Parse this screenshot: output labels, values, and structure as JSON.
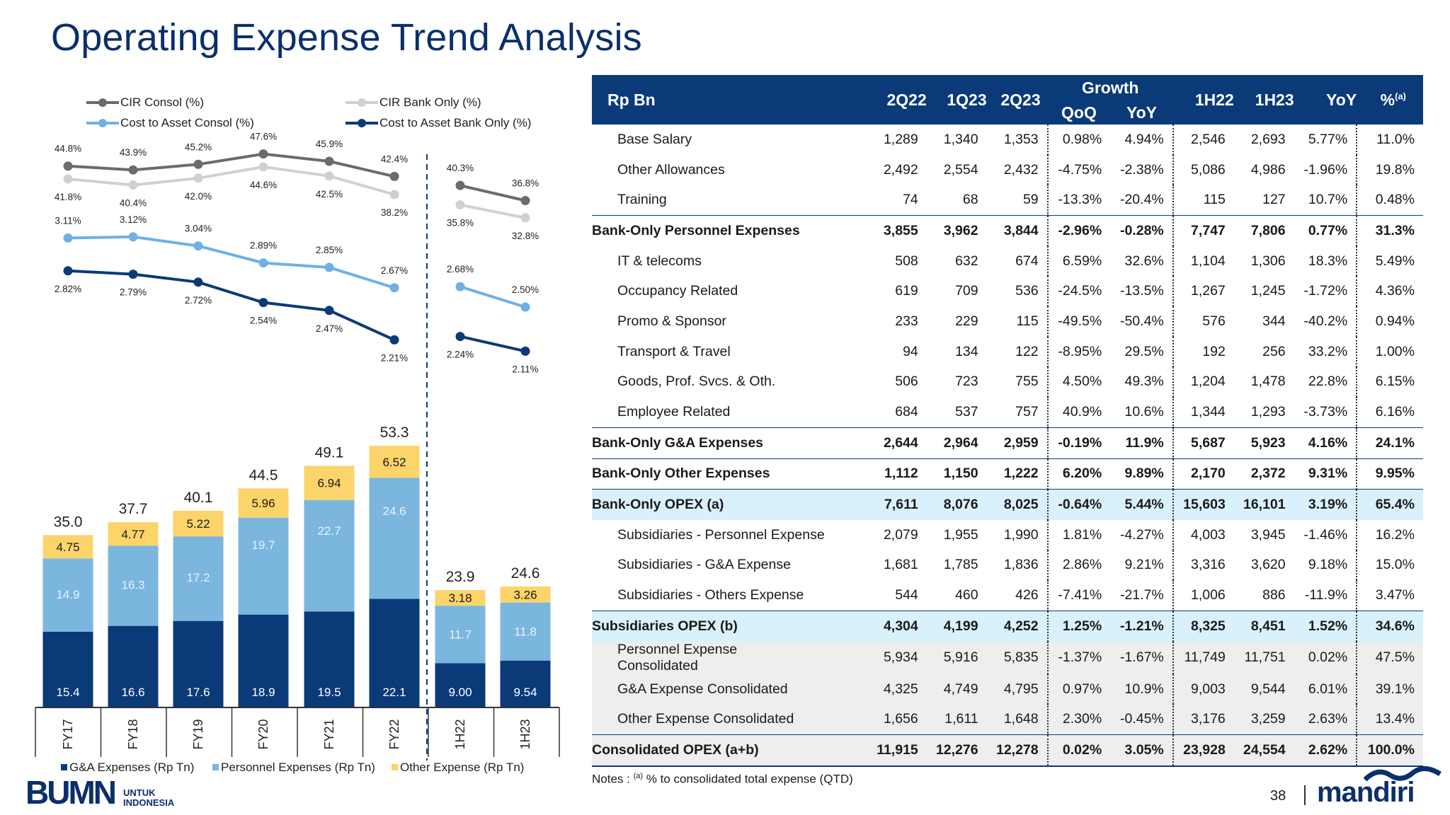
{
  "title": "Operating Expense  Trend Analysis",
  "colors": {
    "navy": "#0b3a78",
    "lightblue": "#7bb6df",
    "yellow": "#fcd46a",
    "grey_dark": "#6b6b6b",
    "grey_light": "#d0d0d0",
    "line_blue": "#6fb1e4",
    "highlight": "#d9f1fb"
  },
  "chart_data": [
    {
      "type": "line",
      "categories": [
        "FY17",
        "FY18",
        "FY19",
        "FY20",
        "FY21",
        "FY22",
        "1H22",
        "1H23"
      ],
      "series": [
        {
          "name": "CIR Consol (%)",
          "values": [
            44.8,
            43.9,
            45.2,
            47.6,
            45.9,
            42.4,
            40.3,
            36.8
          ],
          "labels": [
            "44.8%",
            "43.9%",
            "45.2%",
            "47.6%",
            "45.9%",
            "42.4%",
            "40.3%",
            "36.8%"
          ]
        },
        {
          "name": "CIR Bank Only (%)",
          "values": [
            41.8,
            40.4,
            42.0,
            44.6,
            42.5,
            38.2,
            35.8,
            32.8
          ],
          "labels": [
            "41.8%",
            "40.4%",
            "42.0%",
            "44.6%",
            "42.5%",
            "38.2%",
            "35.8%",
            "32.8%"
          ]
        },
        {
          "name": "Cost to Asset Consol (%)",
          "values": [
            3.11,
            3.12,
            3.04,
            2.89,
            2.85,
            2.67,
            2.68,
            2.5
          ],
          "labels": [
            "3.11%",
            "3.12%",
            "3.04%",
            "2.89%",
            "2.85%",
            "2.67%",
            "2.68%",
            "2.50%"
          ]
        },
        {
          "name": "Cost to Asset Bank Only (%)",
          "values": [
            2.82,
            2.79,
            2.72,
            2.54,
            2.47,
            2.21,
            2.24,
            2.11
          ],
          "labels": [
            "2.82%",
            "2.79%",
            "2.72%",
            "2.54%",
            "2.47%",
            "2.21%",
            "2.24%",
            "2.11%"
          ]
        }
      ]
    },
    {
      "type": "bar",
      "stacked": true,
      "categories": [
        "FY17",
        "FY18",
        "FY19",
        "FY20",
        "FY21",
        "FY22",
        "1H22",
        "1H23"
      ],
      "totals": [
        "35.0",
        "37.7",
        "40.1",
        "44.5",
        "49.1",
        "53.3",
        "23.9",
        "24.6"
      ],
      "series": [
        {
          "name": "G&A Expenses (Rp Tn)",
          "values": [
            15.4,
            16.6,
            17.6,
            18.9,
            19.5,
            22.1,
            9.0,
            9.54
          ],
          "labels": [
            "15.4",
            "16.6",
            "17.6",
            "18.9",
            "19.5",
            "22.1",
            "9.00",
            "9.54"
          ]
        },
        {
          "name": "Personnel Expenses (Rp Tn)",
          "values": [
            14.9,
            16.3,
            17.2,
            19.7,
            22.7,
            24.6,
            11.7,
            11.8
          ],
          "labels": [
            "14.9",
            "16.3",
            "17.2",
            "19.7",
            "22.7",
            "24.6",
            "11.7",
            "11.8"
          ]
        },
        {
          "name": "Other Expense (Rp Tn)",
          "values": [
            4.75,
            4.77,
            5.22,
            5.96,
            6.94,
            6.52,
            3.18,
            3.26
          ],
          "labels": [
            "4.75",
            "4.77",
            "5.22",
            "5.96",
            "6.94",
            "6.52",
            "3.18",
            "3.26"
          ]
        }
      ]
    }
  ],
  "table": {
    "header": {
      "label": "Rp Bn",
      "growth": "Growth",
      "cols": [
        "2Q22",
        "1Q23",
        "2Q23"
      ],
      "qoq": "QoQ",
      "yoy": "YoY",
      "cols2": [
        "1H22",
        "1H23"
      ],
      "yoy2": "YoY",
      "pct": "%",
      "pct_sup": "(a)"
    },
    "rows": [
      {
        "label": "Base Salary",
        "v": [
          "1,289",
          "1,340",
          "1,353",
          "0.98%",
          "4.94%",
          "2,546",
          "2,693",
          "5.77%",
          "11.0%"
        ]
      },
      {
        "label": "Other Allowances",
        "v": [
          "2,492",
          "2,554",
          "2,432",
          "-4.75%",
          "-2.38%",
          "5,086",
          "4,986",
          "-1.96%",
          "19.8%"
        ]
      },
      {
        "label": "Training",
        "v": [
          "74",
          "68",
          "59",
          "-13.3%",
          "-20.4%",
          "115",
          "127",
          "10.7%",
          "0.48%"
        ]
      },
      {
        "label": "Bank-Only Personnel Expenses",
        "v": [
          "3,855",
          "3,962",
          "3,844",
          "-2.96%",
          "-0.28%",
          "7,747",
          "7,806",
          "0.77%",
          "31.3%"
        ]
      },
      {
        "label": "IT & telecoms",
        "v": [
          "508",
          "632",
          "674",
          "6.59%",
          "32.6%",
          "1,104",
          "1,306",
          "18.3%",
          "5.49%"
        ]
      },
      {
        "label": "Occupancy Related",
        "v": [
          "619",
          "709",
          "536",
          "-24.5%",
          "-13.5%",
          "1,267",
          "1,245",
          "-1.72%",
          "4.36%"
        ]
      },
      {
        "label": "Promo & Sponsor",
        "v": [
          "233",
          "229",
          "115",
          "-49.5%",
          "-50.4%",
          "576",
          "344",
          "-40.2%",
          "0.94%"
        ]
      },
      {
        "label": "Transport & Travel",
        "v": [
          "94",
          "134",
          "122",
          "-8.95%",
          "29.5%",
          "192",
          "256",
          "33.2%",
          "1.00%"
        ]
      },
      {
        "label": "Goods, Prof. Svcs. & Oth.",
        "v": [
          "506",
          "723",
          "755",
          "4.50%",
          "49.3%",
          "1,204",
          "1,478",
          "22.8%",
          "6.15%"
        ]
      },
      {
        "label": "Employee Related",
        "v": [
          "684",
          "537",
          "757",
          "40.9%",
          "10.6%",
          "1,344",
          "1,293",
          "-3.73%",
          "6.16%"
        ]
      },
      {
        "label": "Bank-Only G&A Expenses",
        "v": [
          "2,644",
          "2,964",
          "2,959",
          "-0.19%",
          "11.9%",
          "5,687",
          "5,923",
          "4.16%",
          "24.1%"
        ]
      },
      {
        "label": "Bank-Only Other Expenses",
        "v": [
          "1,112",
          "1,150",
          "1,222",
          "6.20%",
          "9.89%",
          "2,170",
          "2,372",
          "9.31%",
          "9.95%"
        ]
      },
      {
        "label": "Bank-Only OPEX (a)",
        "v": [
          "7,611",
          "8,076",
          "8,025",
          "-0.64%",
          "5.44%",
          "15,603",
          "16,101",
          "3.19%",
          "65.4%"
        ]
      },
      {
        "label": "Subsidiaries - Personnel Expense",
        "v": [
          "2,079",
          "1,955",
          "1,990",
          "1.81%",
          "-4.27%",
          "4,003",
          "3,945",
          "-1.46%",
          "16.2%"
        ]
      },
      {
        "label": "Subsidiaries - G&A Expense",
        "v": [
          "1,681",
          "1,785",
          "1,836",
          "2.86%",
          "9.21%",
          "3,316",
          "3,620",
          "9.18%",
          "15.0%"
        ]
      },
      {
        "label": "Subsidiaries - Others Expense",
        "v": [
          "544",
          "460",
          "426",
          "-7.41%",
          "-21.7%",
          "1,006",
          "886",
          "-11.9%",
          "3.47%"
        ]
      },
      {
        "label": "Subsidiaries OPEX (b)",
        "v": [
          "4,304",
          "4,199",
          "4,252",
          "1.25%",
          "-1.21%",
          "8,325",
          "8,451",
          "1.52%",
          "34.6%"
        ]
      },
      {
        "label1": "Personnel Expense",
        "label2": "Consolidated",
        "v": [
          "5,934",
          "5,916",
          "5,835",
          "-1.37%",
          "-1.67%",
          "11,749",
          "11,751",
          "0.02%",
          "47.5%"
        ]
      },
      {
        "label": "G&A Expense Consolidated",
        "v": [
          "4,325",
          "4,749",
          "4,795",
          "0.97%",
          "10.9%",
          "9,003",
          "9,544",
          "6.01%",
          "39.1%"
        ]
      },
      {
        "label": "Other Expense Consolidated",
        "v": [
          "1,656",
          "1,611",
          "1,648",
          "2.30%",
          "-0.45%",
          "3,176",
          "3,259",
          "2.63%",
          "13.4%"
        ]
      },
      {
        "label": "Consolidated OPEX (a+b)",
        "v": [
          "11,915",
          "12,276",
          "12,278",
          "0.02%",
          "3.05%",
          "23,928",
          "24,554",
          "2.62%",
          "100.0%"
        ]
      }
    ]
  },
  "notes": {
    "prefix": "Notes :",
    "sup": "(a)",
    "text": "% to consolidated total expense (QTD)"
  },
  "page_number": "38",
  "brand": "mandiri",
  "bumn": {
    "logo": "BUMN",
    "line1": "UNTUK",
    "line2": "INDONESIA"
  }
}
